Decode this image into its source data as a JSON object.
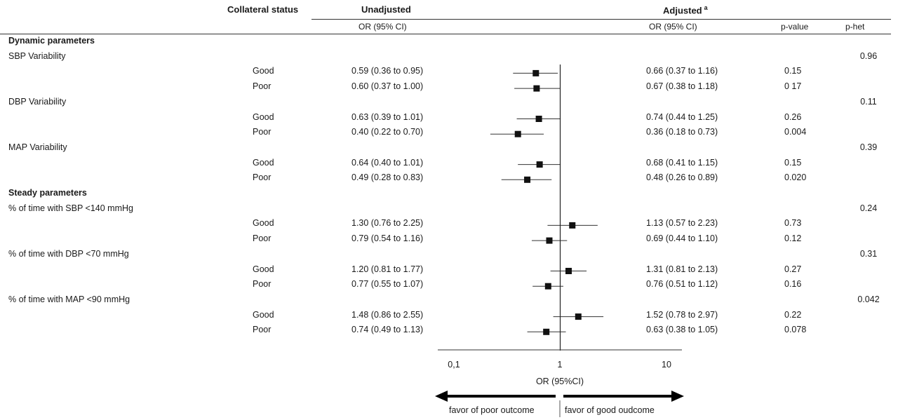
{
  "headers": {
    "collateral_status": "Collateral status",
    "unadjusted": "Unadjusted",
    "adjusted": "Adjusted",
    "adjusted_sup": "a",
    "or_ci_unadj": "OR (95% CI)",
    "or_ci_adj": "OR (95% CI)",
    "p_value": "p-value",
    "p_het": "p-het"
  },
  "sections": {
    "dynamic": "Dynamic parameters",
    "steady": "Steady parameters"
  },
  "axis": {
    "ticks": [
      "0,1",
      "1",
      "10"
    ],
    "xlabel": "OR (95%CI)",
    "left_arrow_label": "favor of poor outcome",
    "right_arrow_label": "favor of good oudcome"
  },
  "chart_data": {
    "type": "forest",
    "x_scale": "log",
    "xlim": [
      0.1,
      10
    ],
    "reference_line": 1,
    "groups": [
      {
        "section": "Dynamic parameters",
        "name": "SBP Variability",
        "p_het": "0.96",
        "rows": [
          {
            "status": "Good",
            "or": 0.59,
            "lo": 0.36,
            "hi": 0.95,
            "unadj": "0.59 (0.36 to 0.95)",
            "adj": "0.66 (0.37 to 1.16)",
            "p": "0.15"
          },
          {
            "status": "Poor",
            "or": 0.6,
            "lo": 0.37,
            "hi": 1.0,
            "unadj": "0.60 (0.37 to 1.00)",
            "adj": "0.67 (0.38 to 1.18)",
            "p": "0 17"
          }
        ]
      },
      {
        "section": "Dynamic parameters",
        "name": "DBP Variability",
        "p_het": "0.11",
        "rows": [
          {
            "status": "Good",
            "or": 0.63,
            "lo": 0.39,
            "hi": 1.01,
            "unadj": "0.63 (0.39 to 1.01)",
            "adj": "0.74 (0.44 to 1.25)",
            "p": "0.26"
          },
          {
            "status": "Poor",
            "or": 0.4,
            "lo": 0.22,
            "hi": 0.7,
            "unadj": "0.40 (0.22 to 0.70)",
            "adj": "0.36 (0.18 to 0.73)",
            "p": "0.004"
          }
        ]
      },
      {
        "section": "Dynamic parameters",
        "name": "MAP Variability",
        "p_het": "0.39",
        "rows": [
          {
            "status": "Good",
            "or": 0.64,
            "lo": 0.4,
            "hi": 1.01,
            "unadj": "0.64 (0.40 to 1.01)",
            "adj": "0.68 (0.41 to 1.15)",
            "p": "0.15"
          },
          {
            "status": "Poor",
            "or": 0.49,
            "lo": 0.28,
            "hi": 0.83,
            "unadj": "0.49 (0.28 to 0.83)",
            "adj": "0.48 (0.26 to 0.89)",
            "p": "0.020"
          }
        ]
      },
      {
        "section": "Steady parameters",
        "name": "% of time with SBP <140 mmHg",
        "p_het": "0.24",
        "rows": [
          {
            "status": "Good",
            "or": 1.3,
            "lo": 0.76,
            "hi": 2.25,
            "unadj": "1.30 (0.76 to 2.25)",
            "adj": "1.13 (0.57 to 2.23)",
            "p": "0.73"
          },
          {
            "status": "Poor",
            "or": 0.79,
            "lo": 0.54,
            "hi": 1.16,
            "unadj": "0.79 (0.54 to 1.16)",
            "adj": "0.69 (0.44 to 1.10)",
            "p": "0.12"
          }
        ]
      },
      {
        "section": "Steady parameters",
        "name": "% of time with DBP <70 mmHg",
        "p_het": "0.31",
        "rows": [
          {
            "status": "Good",
            "or": 1.2,
            "lo": 0.81,
            "hi": 1.77,
            "unadj": "1.20 (0.81 to 1.77)",
            "adj": "1.31 (0.81 to 2.13)",
            "p": "0.27"
          },
          {
            "status": "Poor",
            "or": 0.77,
            "lo": 0.55,
            "hi": 1.07,
            "unadj": "0.77 (0.55 to 1.07)",
            "adj": "0.76 (0.51 to 1.12)",
            "p": "0.16"
          }
        ]
      },
      {
        "section": "Steady parameters",
        "name": "% of time with MAP <90 mmHg",
        "p_het": "0.042",
        "rows": [
          {
            "status": "Good",
            "or": 1.48,
            "lo": 0.86,
            "hi": 2.55,
            "unadj": "1.48 (0.86 to 2.55)",
            "adj": "1.52 (0.78 to 2.97)",
            "p": "0.22"
          },
          {
            "status": "Poor",
            "or": 0.74,
            "lo": 0.49,
            "hi": 1.13,
            "unadj": "0.74 (0.49 to 1.13)",
            "adj": "0.63 (0.38 to 1.05)",
            "p": "0.078"
          }
        ]
      }
    ]
  }
}
